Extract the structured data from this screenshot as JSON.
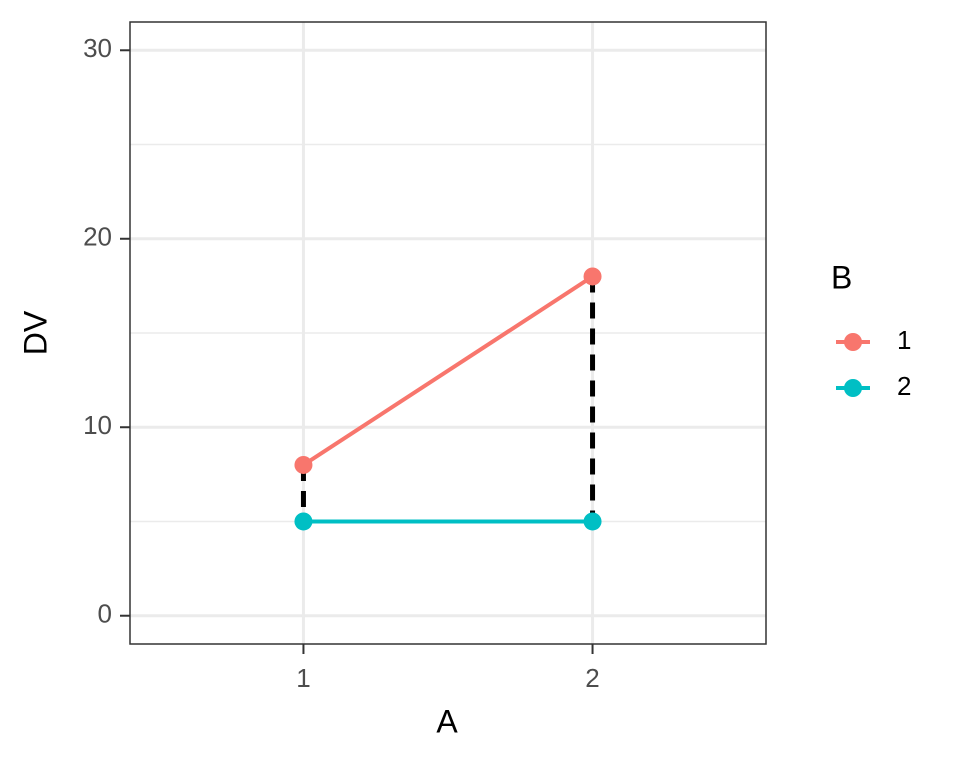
{
  "chart_data": {
    "type": "line",
    "x_label": "A",
    "y_label": "DV",
    "legend_title": "B",
    "x": [
      1,
      2
    ],
    "series": [
      {
        "name": "1",
        "color": "#F8766D",
        "values": [
          8,
          18
        ]
      },
      {
        "name": "2",
        "color": "#00BFC4",
        "values": [
          5,
          5
        ]
      }
    ],
    "xlim": [
      0.4,
      2.6
    ],
    "xticks": [
      1,
      2
    ],
    "ylim": [
      -1.5,
      31.5
    ],
    "yticks": [
      0,
      10,
      20,
      30
    ],
    "yminor": [
      5,
      15,
      25
    ],
    "grid": true,
    "legend": "right",
    "difference_segments": {
      "color": "#000000",
      "dashed": true
    }
  }
}
